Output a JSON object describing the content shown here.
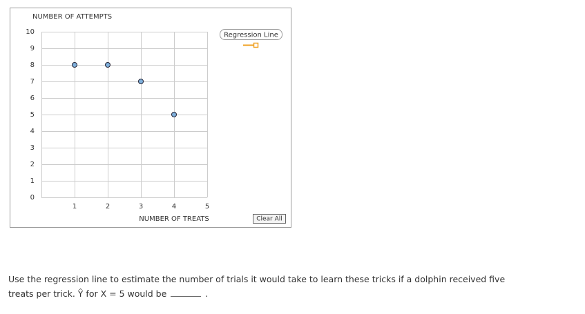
{
  "chart_data": {
    "type": "scatter",
    "ylabel": "NUMBER OF ATTEMPTS",
    "xlabel": "NUMBER OF TREATS",
    "x": [
      1,
      2,
      3,
      4
    ],
    "values": [
      8,
      8,
      7,
      5
    ],
    "color": "#7fb0dc",
    "xlim": [
      0,
      5
    ],
    "ylim": [
      0,
      10
    ],
    "xticks": [
      1,
      2,
      3,
      4,
      5
    ],
    "yticks": [
      0,
      1,
      2,
      3,
      4,
      5,
      6,
      7,
      8,
      9,
      10
    ],
    "grid": true
  },
  "widget": {
    "legend_button": "Regression Line",
    "legend_color": "#f0a020",
    "clear_button": "Clear All"
  },
  "question": {
    "text": "Use the regression line to estimate the number of trials it would take to learn these tricks if a dolphin received five treats per trick. Ŷ for X = 5 would be",
    "suffix": "."
  }
}
